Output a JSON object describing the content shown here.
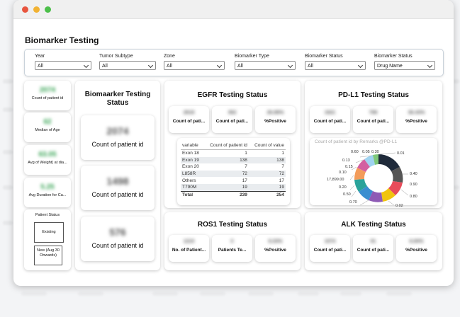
{
  "window": {
    "title": "Biomarker Testing"
  },
  "filters": [
    {
      "label": "Year",
      "value": "All"
    },
    {
      "label": "Tumor Subtype",
      "value": "All"
    },
    {
      "label": "Zone",
      "value": "All"
    },
    {
      "label": "Biomarker Type",
      "value": "All"
    },
    {
      "label": "Biomarker Status",
      "value": "All"
    },
    {
      "label": "Biomarker Status",
      "value": "Drug Name"
    }
  ],
  "left_kpis": [
    {
      "value": "2074",
      "caption": "Count of patient id"
    },
    {
      "value": "62",
      "caption": "Median of Age"
    },
    {
      "value": "63.05",
      "caption": "Avg of Weight( at dia..."
    },
    {
      "value": "5.25",
      "caption": "Avg Duration for Ca..."
    }
  ],
  "patient_status": {
    "title": "Patient Status",
    "options": [
      "Existing",
      "New (Aug 30 Onwards)"
    ]
  },
  "biomarker": {
    "title": "Biomaarker Testing Status",
    "cards": [
      {
        "value": "2074",
        "caption": "Count of patient id"
      },
      {
        "value": "1498",
        "caption": "Count of patient id"
      },
      {
        "value": "576",
        "caption": "Count of patient id"
      }
    ]
  },
  "egfr": {
    "title": "EGFR Testing Status",
    "kpis": [
      {
        "value": "2618",
        "caption": "Count of pati..."
      },
      {
        "value": "362",
        "caption": "Count of pati..."
      },
      {
        "value": "26.88%",
        "caption": "%Positive"
      }
    ],
    "table": {
      "headers": [
        "variable",
        "Count of patient id",
        "Count of value"
      ],
      "rows": [
        [
          "Exon 18",
          "1",
          "1"
        ],
        [
          "Exon 19",
          "138",
          "138"
        ],
        [
          "Exon 20",
          "7",
          "7"
        ],
        [
          "L858R",
          "72",
          "72"
        ],
        [
          "Others",
          "17",
          "17"
        ],
        [
          "T790M",
          "19",
          "19"
        ]
      ],
      "total": [
        "Total",
        "239",
        "254"
      ]
    }
  },
  "pdl1": {
    "title": "PD-L1 Testing Status",
    "kpis": [
      {
        "value": "1621",
        "caption": "Count of pati..."
      },
      {
        "value": "798",
        "caption": "Count of pati..."
      },
      {
        "value": "36.43%",
        "caption": "%Positive"
      }
    ],
    "donut": {
      "title": "Count of patient id by Remarks @PD-L1",
      "labels": [
        "0.01",
        "0.13",
        "0.15",
        "0.60",
        "0.05",
        "0.10",
        "0.20",
        "0.50",
        "17,899.00",
        "0.40",
        "0.70",
        "0.80",
        "0.02",
        "0.90",
        "0.30"
      ]
    }
  },
  "ros1": {
    "title": "ROS1 Testing Status",
    "kpis": [
      {
        "value": "1210",
        "caption": "No. of Patient..."
      },
      {
        "value": "0",
        "caption": "Patients Te..."
      },
      {
        "value": "8.33%",
        "caption": "%Positive"
      }
    ]
  },
  "alk": {
    "title": "ALK Testing Status",
    "kpis": [
      {
        "value": "1074",
        "caption": "Count of pati..."
      },
      {
        "value": "91",
        "caption": "Count of pati..."
      },
      {
        "value": "6.00%",
        "caption": "%Positive"
      }
    ]
  },
  "colors": {
    "kpi_green": "#2e9f4c",
    "accent_teal": "#2aa39a"
  }
}
